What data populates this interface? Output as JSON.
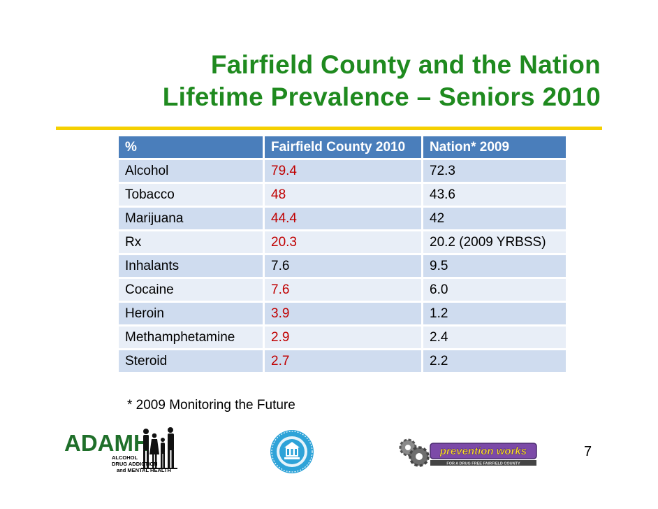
{
  "title": {
    "line1": "Fairfield County and the Nation",
    "line2": "Lifetime Prevalence – Seniors 2010"
  },
  "table": {
    "headers": [
      "%",
      "Fairfield County 2010",
      "Nation* 2009"
    ],
    "rows": [
      {
        "substance": "Alcohol",
        "county": "79.4",
        "county_highlight": true,
        "nation": "72.3"
      },
      {
        "substance": "Tobacco",
        "county": "48",
        "county_highlight": true,
        "nation": "43.6"
      },
      {
        "substance": "Marijuana",
        "county": "44.4",
        "county_highlight": true,
        "nation": "42"
      },
      {
        "substance": "Rx",
        "county": "20.3",
        "county_highlight": true,
        "nation": "20.2 (2009 YRBSS)"
      },
      {
        "substance": "Inhalants",
        "county": "7.6",
        "county_highlight": false,
        "nation": "9.5"
      },
      {
        "substance": "Cocaine",
        "county": "7.6",
        "county_highlight": true,
        "nation": "6.0"
      },
      {
        "substance": "Heroin",
        "county": "3.9",
        "county_highlight": true,
        "nation": "1.2"
      },
      {
        "substance": "Methamphetamine",
        "county": "2.9",
        "county_highlight": true,
        "nation": "2.4"
      },
      {
        "substance": "Steroid",
        "county": "2.7",
        "county_highlight": true,
        "nation": "2.2"
      }
    ]
  },
  "footnote": "* 2009 Monitoring the Future",
  "page_number": "7",
  "logos": {
    "adamh": {
      "wordmark": "ADAMH",
      "line1": "ALCOHOL",
      "line2": "DRUG ADDICTION",
      "line3": "and MENTAL HEALTH"
    },
    "seal": {
      "name": "county-seal"
    },
    "prevention": {
      "wordmark": "prevention works",
      "tagline": "FOR A DRUG FREE FAIRFIELD COUNTY"
    }
  },
  "colors": {
    "title": "#1f8a1f",
    "rule": "#f5d000",
    "header_bg": "#4a7ebb",
    "row_dark": "#cfdcef",
    "row_light": "#e8eef7",
    "highlight_value": "#c00000"
  }
}
